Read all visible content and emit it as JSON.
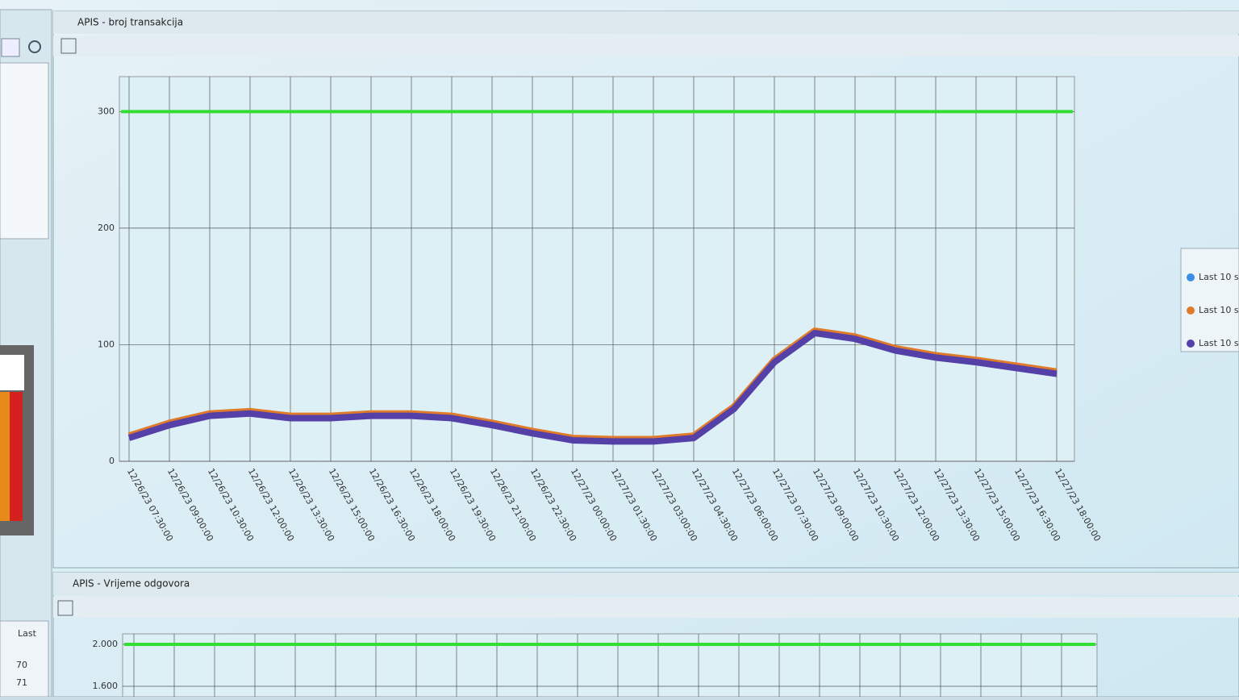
{
  "top_window": {
    "title": "APIS - broj transakcija",
    "chart_data": {
      "type": "line",
      "ylim": [
        0,
        330
      ],
      "yticks": [
        0,
        100,
        200,
        300
      ],
      "grid": true,
      "threshold": {
        "color": "#33dd33",
        "value": 300
      },
      "categories": [
        "12/26/23 07:30:00",
        "12/26/23 09:00:00",
        "12/26/23 10:30:00",
        "12/26/23 12:00:00",
        "12/26/23 13:30:00",
        "12/26/23 15:00:00",
        "12/26/23 16:30:00",
        "12/26/23 18:00:00",
        "12/26/23 19:30:00",
        "12/26/23 21:00:00",
        "12/26/23 22:30:00",
        "12/27/23 00:00:00",
        "12/27/23 01:30:00",
        "12/27/23 03:00:00",
        "12/27/23 04:30:00",
        "12/27/23 06:00:00",
        "12/27/23 07:30:00",
        "12/27/23 09:00:00",
        "12/27/23 10:30:00",
        "12/27/23 12:00:00",
        "12/27/23 13:30:00",
        "12/27/23 15:00:00",
        "12/27/23 16:30:00",
        "12/27/23 18:00:00"
      ],
      "series": [
        {
          "name": "Last 10 s",
          "color": "#3a8ee6",
          "values": [
            21,
            32,
            40,
            42,
            38,
            38,
            40,
            40,
            38,
            32,
            25,
            19,
            18,
            18,
            21,
            46,
            86,
            111,
            106,
            96,
            90,
            86,
            81,
            76
          ]
        },
        {
          "name": "Last 10 s",
          "color": "#e07b2a",
          "values": [
            22,
            33,
            41,
            43,
            39,
            39,
            41,
            41,
            39,
            33,
            26,
            20,
            19,
            19,
            22,
            47,
            87,
            112,
            107,
            97,
            91,
            87,
            82,
            77
          ]
        },
        {
          "name": "Last 10 s",
          "color": "#5540a8",
          "values": [
            20,
            31,
            39,
            41,
            37,
            37,
            39,
            39,
            37,
            31,
            24,
            18,
            17,
            17,
            20,
            45,
            85,
            110,
            105,
            95,
            89,
            85,
            80,
            75
          ]
        }
      ]
    }
  },
  "bottom_window": {
    "title": "APIS - Vrijeme odgovora",
    "chart_data": {
      "type": "line",
      "ylim": [
        1500,
        2100
      ],
      "yticks": [
        {
          "value": 1600,
          "label": "1.600"
        },
        {
          "value": 2000,
          "label": "2.000"
        }
      ],
      "grid": true,
      "threshold": {
        "color": "#33dd33",
        "value": 2000
      }
    }
  },
  "left_table": {
    "header": "Last",
    "rows": [
      "70",
      "71"
    ]
  }
}
